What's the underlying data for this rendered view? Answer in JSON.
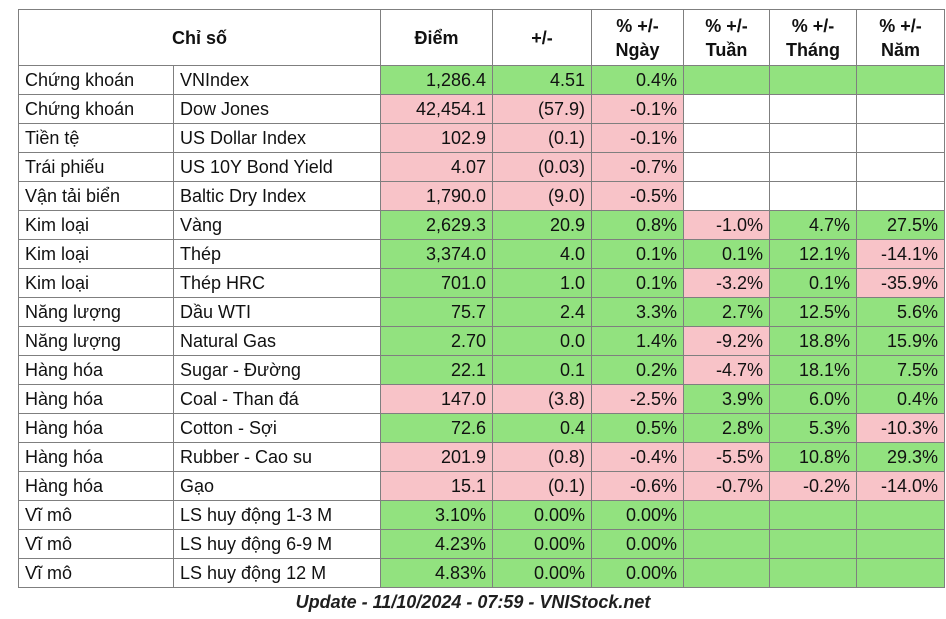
{
  "headers": {
    "index": "Chỉ số",
    "points": "Điểm",
    "change": "+/-",
    "pct_day": [
      "% +/-",
      "Ngày"
    ],
    "pct_week": [
      "% +/-",
      "Tuần"
    ],
    "pct_month": [
      "% +/-",
      "Tháng"
    ],
    "pct_year": [
      "% +/-",
      "Năm"
    ]
  },
  "colors": {
    "up": "#92e27f",
    "down": "#f8c3c8",
    "none": "#ffffff"
  },
  "rows": [
    {
      "category": "Chứng khoán",
      "name": "VNIndex",
      "points": "1,286.4",
      "change": "4.51",
      "day": "0.4%",
      "week": "",
      "month": "",
      "year": "",
      "c": [
        "up",
        "up",
        "up",
        "up",
        "up",
        "up"
      ]
    },
    {
      "category": "Chứng khoán",
      "name": "Dow Jones",
      "points": "42,454.1",
      "change": "(57.9)",
      "day": "-0.1%",
      "week": "",
      "month": "",
      "year": "",
      "c": [
        "down",
        "down",
        "down",
        "none",
        "none",
        "none"
      ]
    },
    {
      "category": "Tiền tệ",
      "name": "US Dollar Index",
      "points": "102.9",
      "change": "(0.1)",
      "day": "-0.1%",
      "week": "",
      "month": "",
      "year": "",
      "c": [
        "down",
        "down",
        "down",
        "none",
        "none",
        "none"
      ]
    },
    {
      "category": "Trái phiếu",
      "name": "US 10Y Bond Yield",
      "points": "4.07",
      "change": "(0.03)",
      "day": "-0.7%",
      "week": "",
      "month": "",
      "year": "",
      "c": [
        "down",
        "down",
        "down",
        "none",
        "none",
        "none"
      ]
    },
    {
      "category": "Vận tải biển",
      "name": "Baltic Dry Index",
      "points": "1,790.0",
      "change": "(9.0)",
      "day": "-0.5%",
      "week": "",
      "month": "",
      "year": "",
      "c": [
        "down",
        "down",
        "down",
        "none",
        "none",
        "none"
      ]
    },
    {
      "category": "Kim loại",
      "name": "Vàng",
      "points": "2,629.3",
      "change": "20.9",
      "day": "0.8%",
      "week": "-1.0%",
      "month": "4.7%",
      "year": "27.5%",
      "c": [
        "up",
        "up",
        "up",
        "down",
        "up",
        "up"
      ]
    },
    {
      "category": "Kim loại",
      "name": "Thép",
      "points": "3,374.0",
      "change": "4.0",
      "day": "0.1%",
      "week": "0.1%",
      "month": "12.1%",
      "year": "-14.1%",
      "c": [
        "up",
        "up",
        "up",
        "up",
        "up",
        "down"
      ]
    },
    {
      "category": "Kim loại",
      "name": "Thép HRC",
      "points": "701.0",
      "change": "1.0",
      "day": "0.1%",
      "week": "-3.2%",
      "month": "0.1%",
      "year": "-35.9%",
      "c": [
        "up",
        "up",
        "up",
        "down",
        "up",
        "down"
      ]
    },
    {
      "category": "Năng lượng",
      "name": "Dầu WTI",
      "points": "75.7",
      "change": "2.4",
      "day": "3.3%",
      "week": "2.7%",
      "month": "12.5%",
      "year": "5.6%",
      "c": [
        "up",
        "up",
        "up",
        "up",
        "up",
        "up"
      ]
    },
    {
      "category": "Năng lượng",
      "name": "Natural Gas",
      "points": "2.70",
      "change": "0.0",
      "day": "1.4%",
      "week": "-9.2%",
      "month": "18.8%",
      "year": "15.9%",
      "c": [
        "up",
        "up",
        "up",
        "down",
        "up",
        "up"
      ]
    },
    {
      "category": "Hàng hóa",
      "name": "Sugar - Đường",
      "points": "22.1",
      "change": "0.1",
      "day": "0.2%",
      "week": "-4.7%",
      "month": "18.1%",
      "year": "7.5%",
      "c": [
        "up",
        "up",
        "up",
        "down",
        "up",
        "up"
      ]
    },
    {
      "category": "Hàng hóa",
      "name": "Coal - Than đá",
      "points": "147.0",
      "change": "(3.8)",
      "day": "-2.5%",
      "week": "3.9%",
      "month": "6.0%",
      "year": "0.4%",
      "c": [
        "down",
        "down",
        "down",
        "up",
        "up",
        "up"
      ]
    },
    {
      "category": "Hàng hóa",
      "name": "Cotton - Sợi",
      "points": "72.6",
      "change": "0.4",
      "day": "0.5%",
      "week": "2.8%",
      "month": "5.3%",
      "year": "-10.3%",
      "c": [
        "up",
        "up",
        "up",
        "up",
        "up",
        "down"
      ]
    },
    {
      "category": "Hàng hóa",
      "name": "Rubber - Cao su",
      "points": "201.9",
      "change": "(0.8)",
      "day": "-0.4%",
      "week": "-5.5%",
      "month": "10.8%",
      "year": "29.3%",
      "c": [
        "down",
        "down",
        "down",
        "down",
        "up",
        "up"
      ]
    },
    {
      "category": "Hàng hóa",
      "name": "Gạo",
      "points": "15.1",
      "change": "(0.1)",
      "day": "-0.6%",
      "week": "-0.7%",
      "month": "-0.2%",
      "year": "-14.0%",
      "c": [
        "down",
        "down",
        "down",
        "down",
        "down",
        "down"
      ]
    },
    {
      "category": "Vĩ mô",
      "name": "LS huy động 1-3 M",
      "points": "3.10%",
      "change": "0.00%",
      "day": "0.00%",
      "week": "",
      "month": "",
      "year": "",
      "c": [
        "up",
        "up",
        "up",
        "up",
        "up",
        "up"
      ]
    },
    {
      "category": "Vĩ mô",
      "name": "LS huy động 6-9 M",
      "points": "4.23%",
      "change": "0.00%",
      "day": "0.00%",
      "week": "",
      "month": "",
      "year": "",
      "c": [
        "up",
        "up",
        "up",
        "up",
        "up",
        "up"
      ]
    },
    {
      "category": "Vĩ mô",
      "name": "LS huy động 12 M",
      "points": "4.83%",
      "change": "0.00%",
      "day": "0.00%",
      "week": "",
      "month": "",
      "year": "",
      "c": [
        "up",
        "up",
        "up",
        "up",
        "up",
        "up"
      ]
    }
  ],
  "footer": "Update - 11/10/2024 - 07:59 - VNIStock.net"
}
